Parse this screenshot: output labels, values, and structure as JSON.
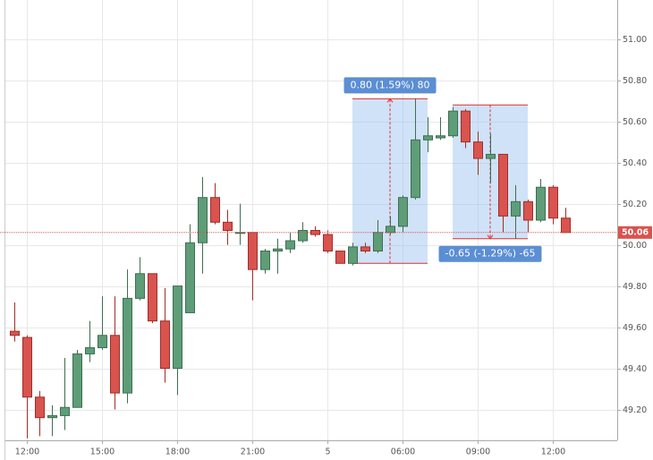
{
  "chart_data": {
    "type": "candlestick",
    "categories": [
      null,
      "12:00",
      null,
      null,
      null,
      null,
      null,
      "15:00",
      null,
      null,
      null,
      null,
      null,
      "18:00",
      null,
      null,
      null,
      null,
      null,
      "21:00",
      null,
      null,
      null,
      null,
      null,
      "5",
      null,
      null,
      null,
      null,
      null,
      "06:00",
      null,
      null,
      null,
      null,
      null,
      "09:00",
      null,
      null,
      null,
      null,
      null,
      "12:00",
      null
    ],
    "open": [
      49.58,
      49.55,
      49.26,
      49.16,
      49.17,
      49.21,
      49.47,
      49.5,
      49.56,
      49.28,
      49.74,
      49.86,
      49.63,
      49.4,
      49.67,
      50.01,
      50.23,
      50.11,
      50.06,
      50.06,
      49.88,
      49.97,
      49.98,
      50.02,
      50.07,
      50.05,
      49.97,
      49.91,
      49.99,
      49.97,
      50.06,
      50.09,
      50.23,
      50.51,
      50.52,
      50.53,
      50.65,
      50.5,
      50.42,
      50.44,
      50.14,
      50.21,
      50.12,
      50.28,
      50.13
    ],
    "high": [
      49.72,
      49.56,
      49.29,
      49.22,
      49.45,
      49.49,
      49.63,
      49.75,
      49.75,
      49.88,
      49.94,
      49.86,
      49.79,
      49.8,
      50.1,
      50.33,
      50.3,
      50.17,
      50.2,
      50.06,
      49.98,
      50.03,
      50.06,
      50.11,
      50.09,
      50.07,
      49.97,
      50.01,
      50.01,
      50.12,
      50.14,
      50.24,
      50.71,
      50.62,
      50.62,
      50.67,
      50.66,
      50.55,
      50.54,
      50.44,
      50.29,
      50.22,
      50.32,
      50.29,
      50.18
    ],
    "low": [
      49.53,
      49.06,
      49.07,
      49.07,
      49.1,
      49.21,
      49.43,
      49.49,
      49.2,
      49.23,
      49.73,
      49.62,
      49.33,
      49.27,
      49.67,
      49.86,
      50.1,
      50.0,
      50.0,
      49.73,
      49.86,
      49.86,
      49.96,
      50.01,
      50.04,
      49.96,
      49.91,
      49.9,
      49.96,
      49.96,
      50.05,
      50.06,
      50.22,
      50.45,
      50.51,
      50.52,
      50.47,
      50.34,
      50.3,
      50.06,
      50.03,
      50.06,
      50.11,
      50.1,
      50.06
    ],
    "close": [
      49.56,
      49.26,
      49.16,
      49.17,
      49.21,
      49.47,
      49.5,
      49.56,
      49.28,
      49.74,
      49.86,
      49.63,
      49.4,
      49.8,
      50.01,
      50.23,
      50.11,
      50.07,
      50.06,
      49.88,
      49.97,
      49.98,
      50.02,
      50.07,
      50.05,
      49.97,
      49.91,
      49.99,
      49.97,
      50.06,
      50.09,
      50.23,
      50.51,
      50.53,
      50.53,
      50.65,
      50.5,
      50.42,
      50.44,
      50.14,
      50.21,
      50.12,
      50.28,
      50.13,
      50.06
    ],
    "up_color": "#5e9d78",
    "down_color": "#d9534f",
    "ylim": [
      49.05,
      51.19
    ],
    "yticks": [
      {
        "value": 49.2,
        "label": "49.20"
      },
      {
        "value": 49.4,
        "label": "49.40"
      },
      {
        "value": 49.6,
        "label": "49.60"
      },
      {
        "value": 49.8,
        "label": "49.80"
      },
      {
        "value": 50.0,
        "label": "50.00"
      },
      {
        "value": 50.2,
        "label": "50.20"
      },
      {
        "value": 50.4,
        "label": "50.40"
      },
      {
        "value": 50.6,
        "label": "50.60"
      },
      {
        "value": 50.8,
        "label": "50.80"
      },
      {
        "value": 51.0,
        "label": "51.00"
      }
    ],
    "grid": true,
    "last_price": 50.06,
    "measurements": [
      {
        "label": "0.80 (1.59%) 80",
        "from_index": 27,
        "to_index": 33,
        "from": 49.91,
        "to": 50.71
      },
      {
        "label": "-0.65 (-1.29%) -65",
        "from_index": 35,
        "to_index": 41,
        "from": 50.68,
        "to": 50.03
      }
    ]
  }
}
